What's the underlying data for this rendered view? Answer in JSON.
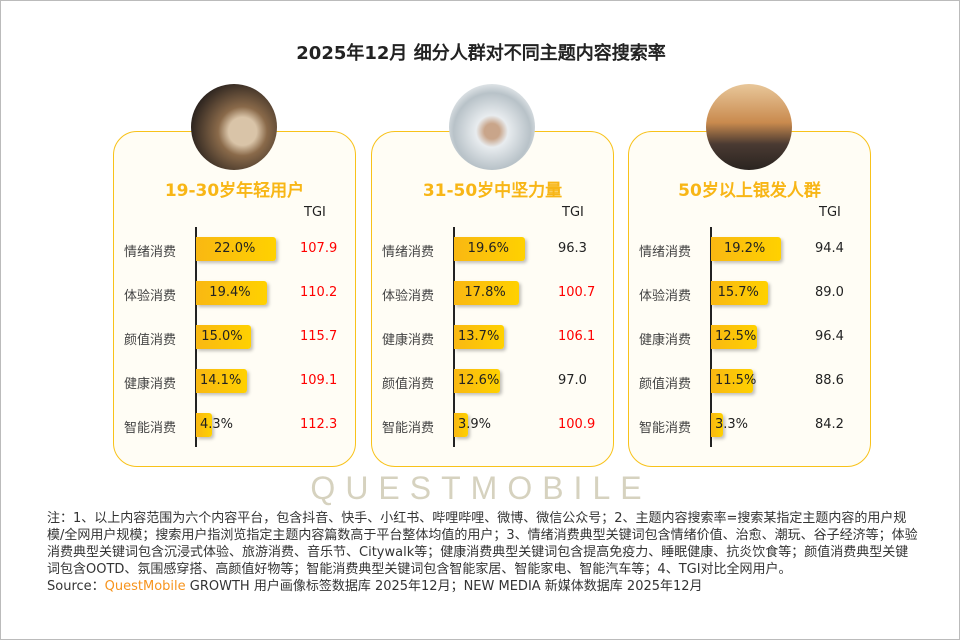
{
  "title": "2025年12月 细分人群对不同主题内容搜索率",
  "watermark": "QUESTMOBILE",
  "colors": {
    "accent": "#f8b616",
    "bar": "#ffc80a",
    "tgi_high": "#ff0000",
    "tgi_low": "#222222"
  },
  "chart_data": [
    {
      "type": "bar",
      "title": "19-30岁年轻用户",
      "tgi_header": "TGI",
      "categories": [
        "情绪消费",
        "体验消费",
        "颜值消费",
        "健康消费",
        "智能消费"
      ],
      "values": [
        22.0,
        19.4,
        15.0,
        14.1,
        4.3
      ],
      "labels": [
        "22.0%",
        "19.4%",
        "15.0%",
        "14.1%",
        "4.3%"
      ],
      "tgi": [
        "107.9",
        "110.2",
        "115.7",
        "109.1",
        "112.3"
      ],
      "image": "sneakers-photo"
    },
    {
      "type": "bar",
      "title": "31-50岁中坚力量",
      "tgi_header": "TGI",
      "categories": [
        "情绪消费",
        "体验消费",
        "健康消费",
        "颜值消费",
        "智能消费"
      ],
      "values": [
        19.6,
        17.8,
        13.7,
        12.6,
        3.9
      ],
      "labels": [
        "19.6%",
        "17.8%",
        "13.7%",
        "12.6%",
        "3.9%"
      ],
      "tgi": [
        "96.3",
        "100.7",
        "106.1",
        "97.0",
        "100.9"
      ],
      "image": "handshake-photo"
    },
    {
      "type": "bar",
      "title": "50岁以上银发人群",
      "tgi_header": "TGI",
      "categories": [
        "情绪消费",
        "体验消费",
        "健康消费",
        "颜值消费",
        "智能消费"
      ],
      "values": [
        19.2,
        15.7,
        12.5,
        11.5,
        3.3
      ],
      "labels": [
        "19.2%",
        "15.7%",
        "12.5%",
        "11.5%",
        "3.3%"
      ],
      "tgi": [
        "94.4",
        "89.0",
        "96.4",
        "88.6",
        "84.2"
      ],
      "image": "sunset-wheelchair-photo"
    }
  ],
  "note": "注：1、以上内容范围为六个内容平台，包含抖音、快手、小红书、哔哩哔哩、微博、微信公众号；2、主题内容搜索率=搜索某指定主题内容的用户规模/全网用户规模；搜索用户指浏览指定主题内容篇数高于平台整体均值的用户；3、情绪消费典型关键词包含情绪价值、治愈、潮玩、谷子经济等；体验消费典型关键词包含沉浸式体验、旅游消费、音乐节、Citywalk等；健康消费典型关键词包含提高免疫力、睡眠健康、抗炎饮食等；颜值消费典型关键词包含OOTD、氛围感穿搭、高颜值好物等；智能消费典型关键词包含智能家居、智能家电、智能汽车等；4、TGI对比全网用户。",
  "source": {
    "prefix": "Source：",
    "brand": "QuestMobile",
    "rest": " GROWTH 用户画像标签数据库 2025年12月；NEW MEDIA 新媒体数据库 2025年12月"
  }
}
